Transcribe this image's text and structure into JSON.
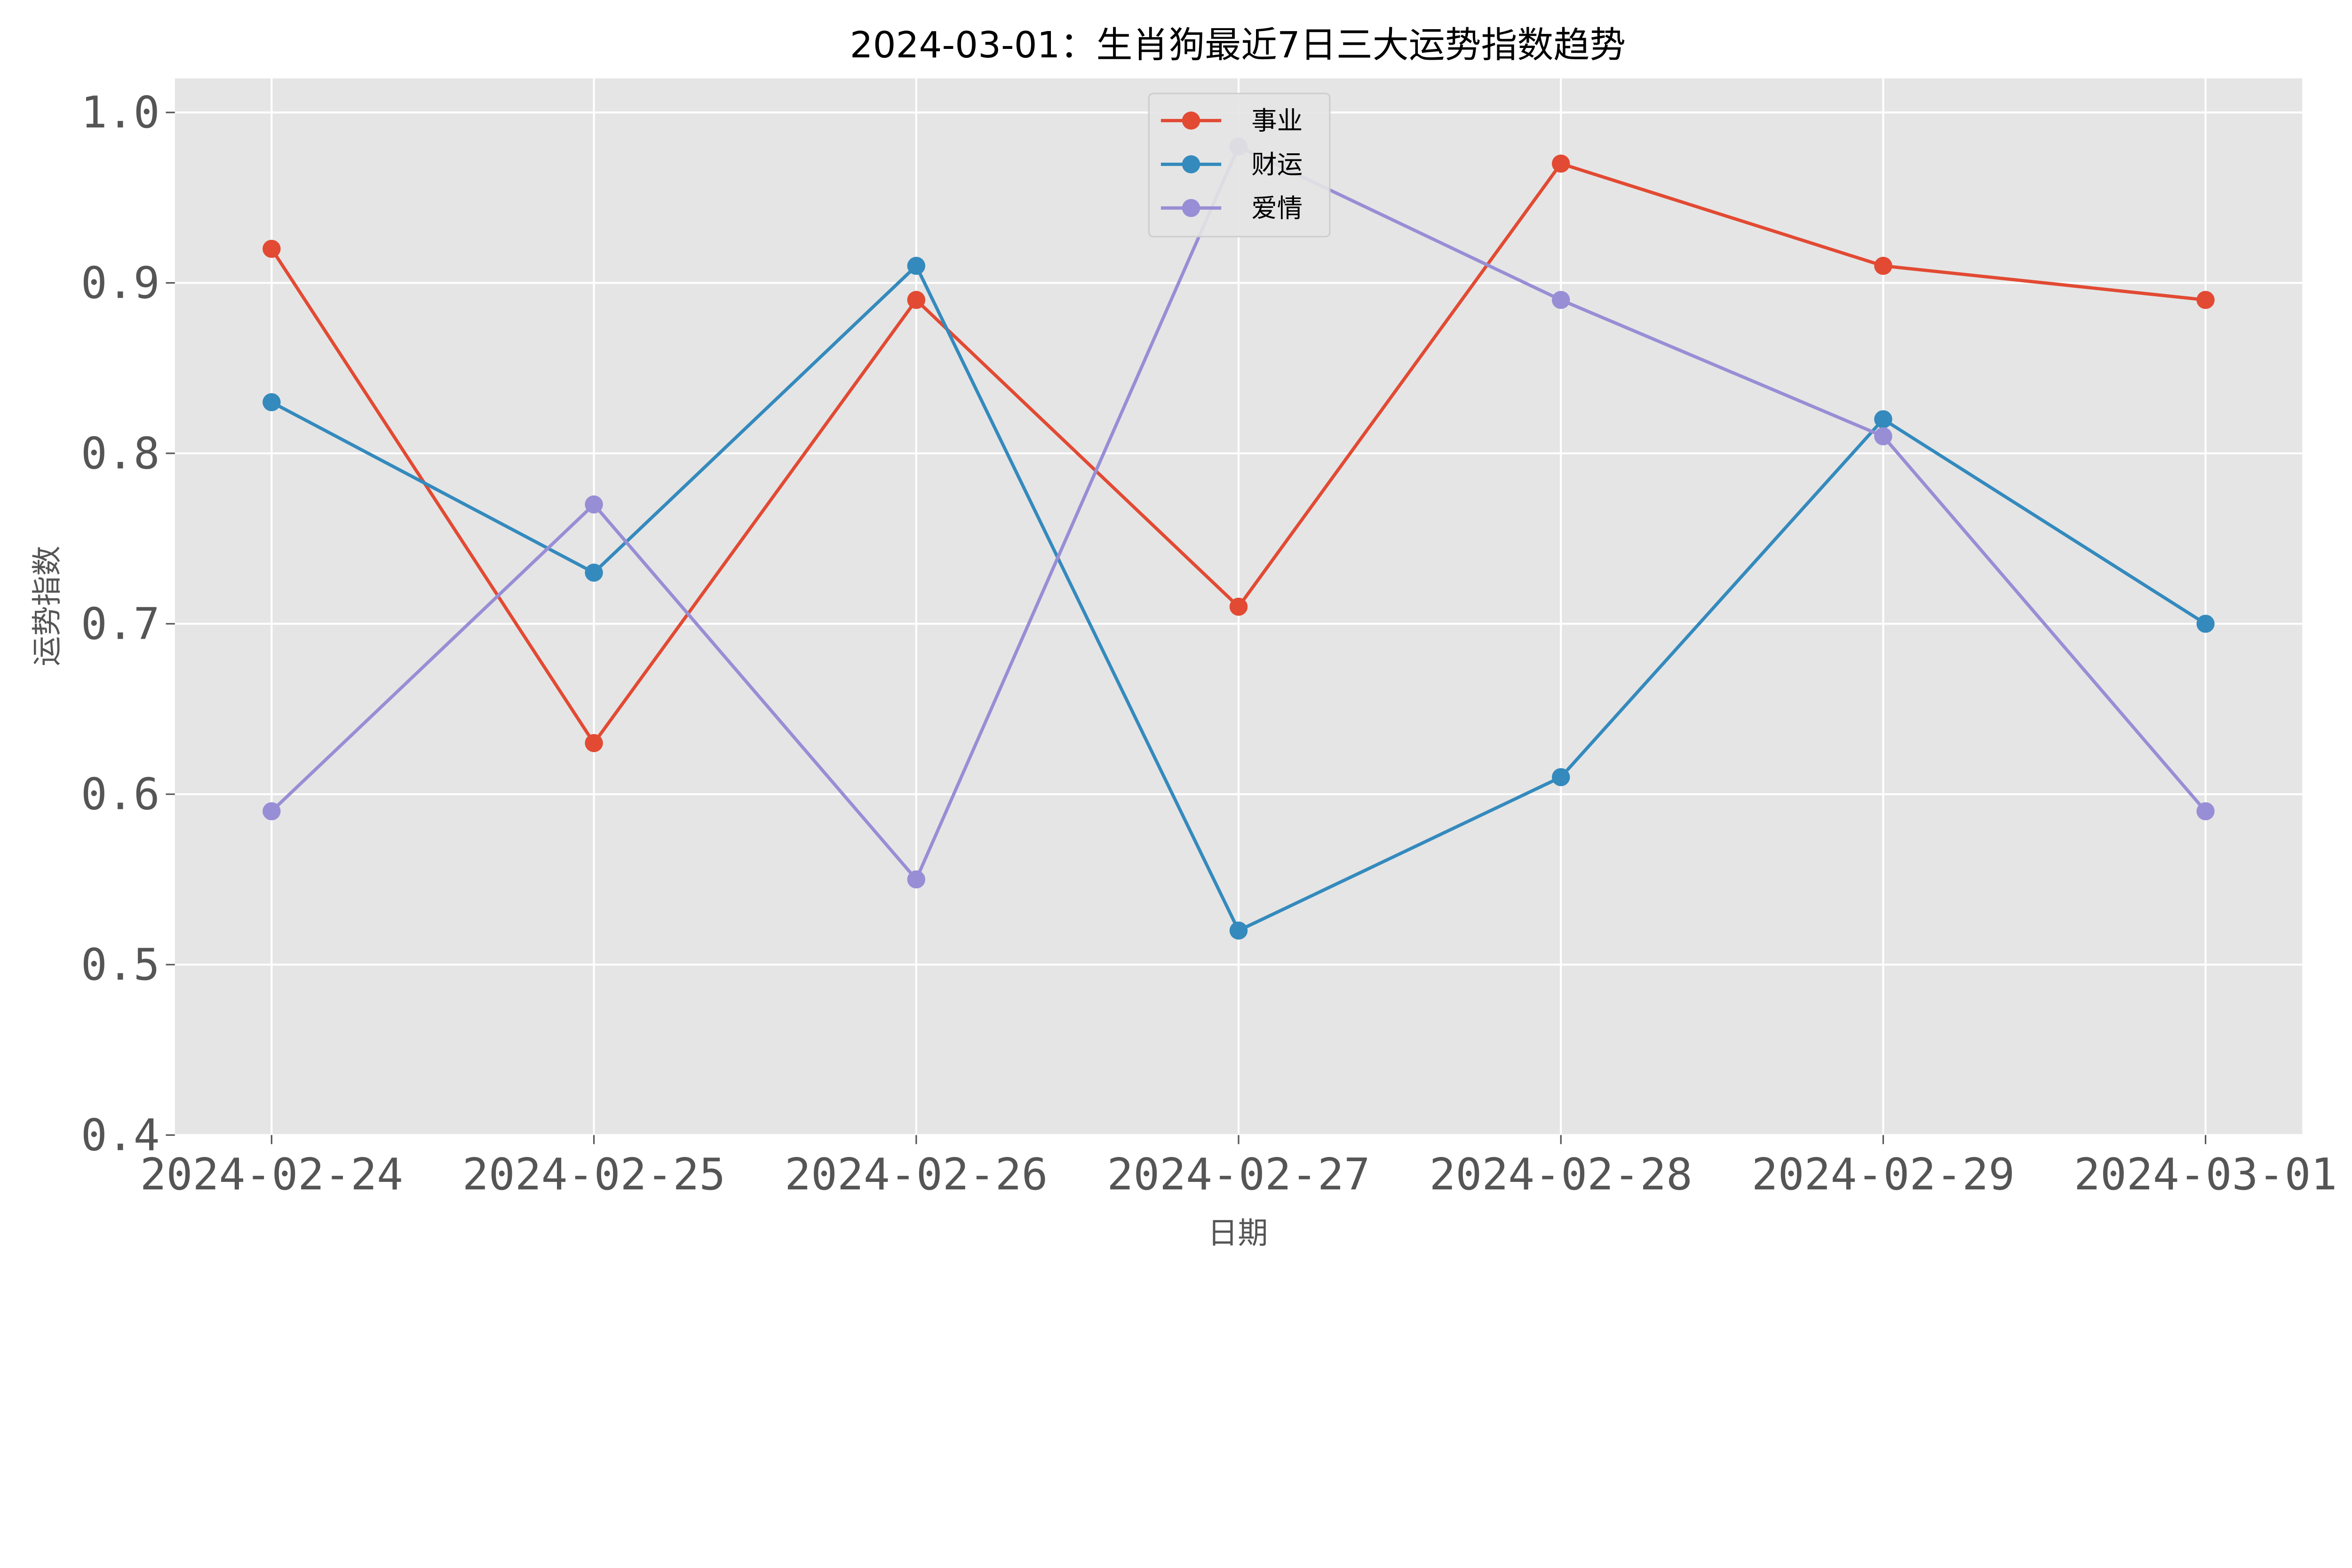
{
  "chart_data": {
    "type": "line",
    "title": "2024-03-01：生肖狗最近7日三大运势指数趋势",
    "xlabel": "日期",
    "ylabel": "运势指数",
    "categories": [
      "2024-02-24",
      "2024-02-25",
      "2024-02-26",
      "2024-02-27",
      "2024-02-28",
      "2024-02-29",
      "2024-03-01"
    ],
    "ylim": [
      0.4,
      1.02
    ],
    "yticks": [
      "0.4",
      "0.5",
      "0.6",
      "0.7",
      "0.8",
      "0.9",
      "1.0"
    ],
    "grid": true,
    "legend_position": "top-center",
    "background": "#e5e5e5",
    "series": [
      {
        "name": "事业",
        "color": "#e24a33",
        "values": [
          0.92,
          0.63,
          0.89,
          0.71,
          0.97,
          0.91,
          0.89
        ]
      },
      {
        "name": "财运",
        "color": "#348abd",
        "values": [
          0.83,
          0.73,
          0.91,
          0.52,
          0.61,
          0.82,
          0.7
        ]
      },
      {
        "name": "爱情",
        "color": "#988ed5",
        "values": [
          0.59,
          0.77,
          0.55,
          0.98,
          0.89,
          0.81,
          0.59
        ]
      }
    ]
  }
}
